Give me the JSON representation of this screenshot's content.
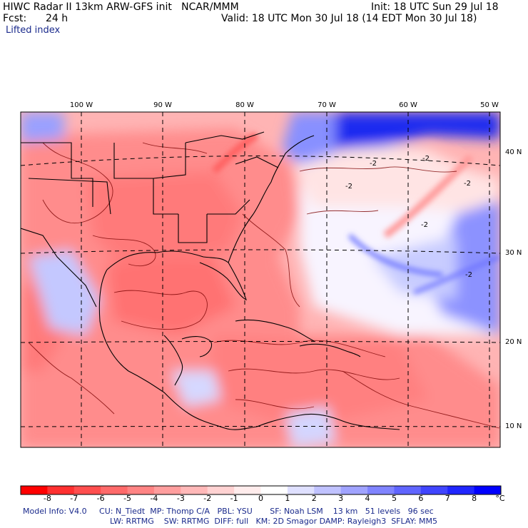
{
  "header": {
    "title": "HIWC Radar II 13km ARW-GFS init   NCAR/MMM",
    "init": "Init: 18 UTC Sun 29 Jul 18",
    "fcst_label": "Fcst:",
    "fcst_value": "24 h",
    "valid": "Valid: 18 UTC Mon 30 Jul 18 (14 EDT Mon 30 Jul 18)",
    "field": "Lifted index"
  },
  "map": {
    "lon_labels": [
      "100 W",
      "90 W",
      "80 W",
      "70 W",
      "60 W",
      "50 W"
    ],
    "lat_labels": [
      "40 N",
      "30 N",
      "20 N",
      "10 N"
    ],
    "contour_labels": [
      "-2",
      "-2",
      "-2",
      "-2",
      "-2",
      "-2"
    ]
  },
  "colorbar": {
    "labels": [
      "-8",
      "-7",
      "-6",
      "-5",
      "-4",
      "-3",
      "-2",
      "-1",
      "0",
      "1",
      "2",
      "3",
      "4",
      "5",
      "6",
      "7",
      "8"
    ],
    "unit": "°C",
    "colors": [
      "#ff0000",
      "#ff3030",
      "#ff4e4e",
      "#ff6a6a",
      "#ff8484",
      "#ff9e9e",
      "#ffb8b8",
      "#ffd2d2",
      "#ffecec",
      "#ffffff",
      "#dfe0ff",
      "#c0c2ff",
      "#a0a3ff",
      "#8084ff",
      "#6065ff",
      "#4045ff",
      "#2026ff",
      "#0000ff"
    ]
  },
  "footer": {
    "line1": "Model Info: V4.0     CU: N_Tiedt  MP: Thomp C/A   PBL: YSU       SF: Noah LSM    13 km   51 levels   96 sec",
    "line2": "LW: RRTMG    SW: RRTMG  DIFF: full   KM: 2D Smagor DAMP: Rayleigh3  SFLAY: MM5"
  }
}
